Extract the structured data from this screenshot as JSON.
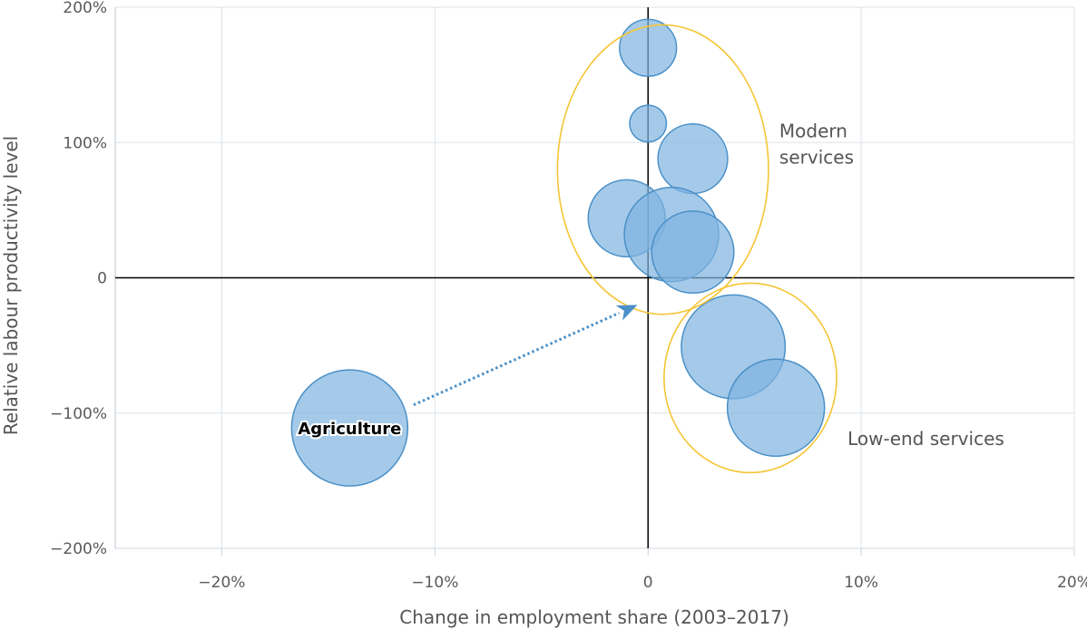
{
  "chart_data": {
    "type": "scatter",
    "subtype": "bubble",
    "xlabel": "Change in employment share (2003–2017)",
    "ylabel": "Relative labour productivity level",
    "xlim": [
      -25,
      20
    ],
    "ylim": [
      -200,
      200
    ],
    "x_ticks": [
      -20,
      -10,
      0,
      10,
      20
    ],
    "x_tick_labels": [
      "−20%",
      "−10%",
      "0",
      "10%",
      "20%"
    ],
    "y_ticks": [
      -200,
      -100,
      0,
      100,
      200
    ],
    "y_tick_labels": [
      "−200%",
      "−100%",
      "0",
      "100%",
      "200%"
    ],
    "grid": true,
    "colors": {
      "bubble_fill": "#7fb3df",
      "bubble_stroke": "#4a90c8",
      "ellipse": "#f5c535",
      "arrow": "#4a90c8"
    },
    "points": [
      {
        "x": 0.0,
        "y": 170,
        "size": 1.2
      },
      {
        "x": 0.0,
        "y": 114,
        "size": 0.5
      },
      {
        "x": 2.1,
        "y": 88,
        "size": 1.8
      },
      {
        "x": -1.0,
        "y": 44,
        "size": 2.2
      },
      {
        "x": 1.1,
        "y": 32,
        "size": 3.3
      },
      {
        "x": 2.1,
        "y": 19,
        "size": 2.5
      },
      {
        "x": 4.0,
        "y": -51,
        "size": 4.0
      },
      {
        "x": 6.0,
        "y": -96,
        "size": 3.5
      },
      {
        "x": -14.0,
        "y": -111,
        "size": 5.0,
        "label": "Agriculture"
      }
    ],
    "groups": [
      {
        "label_lines": [
          "Modern",
          "services"
        ],
        "cx": 0.7,
        "cy": 80,
        "rx": 4.95,
        "ry": 107
      },
      {
        "label_lines": [
          "Low-end services"
        ],
        "cx": 4.8,
        "cy": -74,
        "rx": 4.05,
        "ry": 70
      }
    ],
    "arrow": {
      "from": [
        -11.0,
        -94
      ],
      "to": [
        -0.5,
        -20
      ]
    }
  }
}
